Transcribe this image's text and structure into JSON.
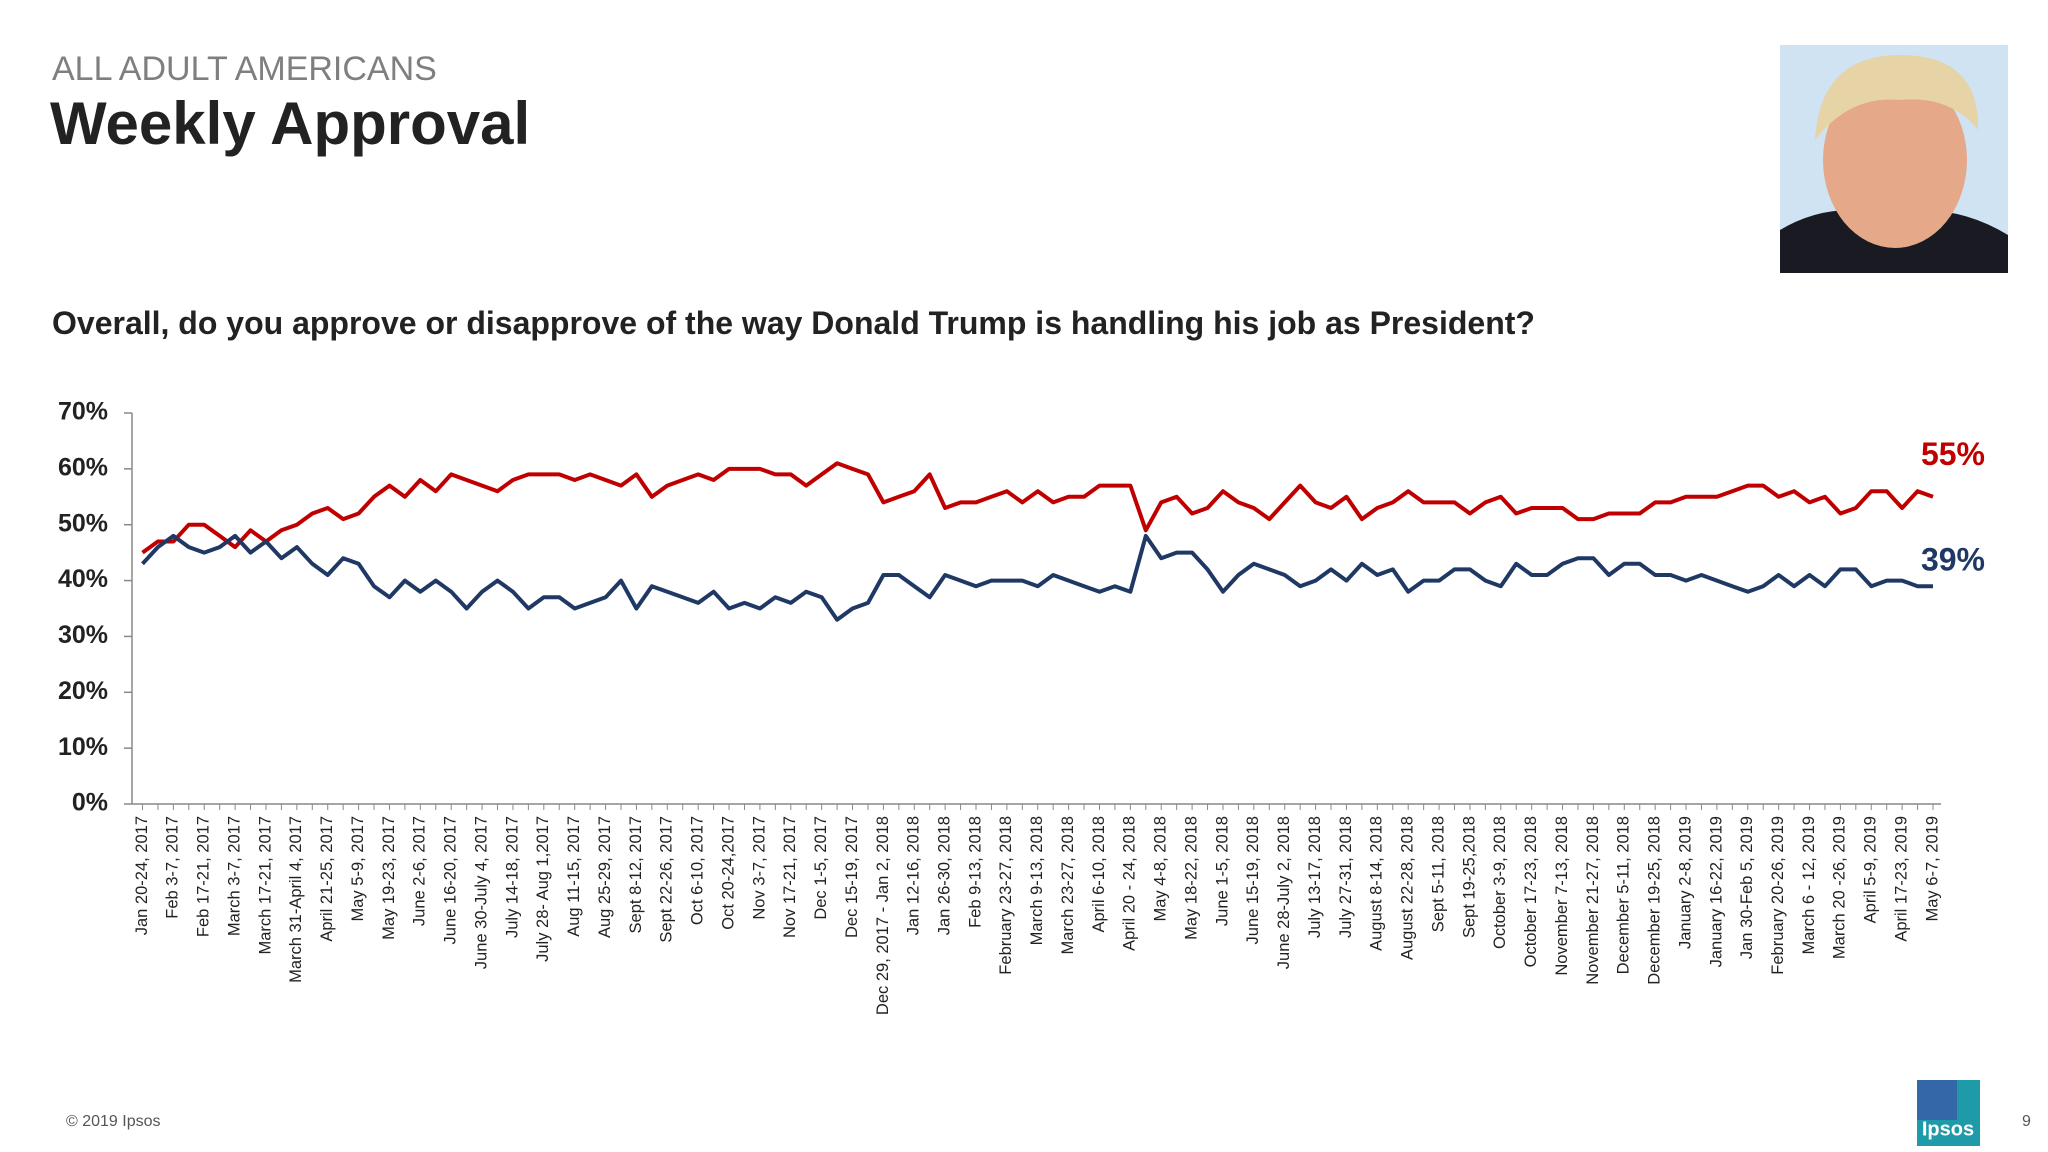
{
  "header": {
    "kicker": "ALL ADULT AMERICANS",
    "title": "Weekly Approval"
  },
  "footer": {
    "copyright": "© 2019 Ipsos",
    "logo": "Ipsos",
    "page": "9"
  },
  "chart_data": {
    "type": "line",
    "subtitle": "Overall, do you approve or disapprove of the way Donald Trump is handling his job as President?",
    "categories": [
      "Jan 20-24, 2017",
      null,
      "Feb 3-7, 2017",
      null,
      "Feb 17-21, 2017",
      null,
      "March 3-7, 2017",
      null,
      "March 17-21, 2017",
      null,
      "March 31-April 4, 2017",
      null,
      "April 21-25, 2017",
      null,
      "May 5-9, 2017",
      null,
      "May 19-23, 2017",
      null,
      "June 2-6, 2017",
      null,
      "June 16-20, 2017",
      null,
      "June 30-July 4, 2017",
      null,
      "July 14-18, 2017",
      null,
      "July 28- Aug 1,2017",
      null,
      "Aug 11-15, 2017",
      null,
      "Aug 25-29, 2017",
      null,
      "Sept 8-12, 2017",
      null,
      "Sept 22-26, 2017",
      null,
      "Oct 6-10, 2017",
      null,
      "Oct 20-24,2017",
      null,
      "Nov 3-7, 2017",
      null,
      "Nov 17-21, 2017",
      null,
      "Dec 1-5, 2017",
      null,
      "Dec 15-19, 2017",
      null,
      "Dec 29, 2017 - Jan 2, 2018",
      null,
      "Jan 12-16, 2018",
      null,
      "Jan 26-30, 2018",
      null,
      "Feb 9-13, 2018",
      null,
      "February 23-27, 2018",
      null,
      "March 9-13, 2018",
      null,
      "March 23-27, 2018",
      null,
      "April 6-10, 2018",
      null,
      "April 20 - 24, 2018",
      null,
      "May 4-8, 2018",
      null,
      "May 18-22, 2018",
      null,
      "June 1-5, 2018",
      null,
      "June 15-19, 2018",
      null,
      "June 28-July 2, 2018",
      null,
      "July 13-17, 2018",
      null,
      "July 27-31, 2018",
      null,
      "August 8-14, 2018",
      null,
      "August 22-28, 2018",
      null,
      "Sept 5-11, 2018",
      null,
      "Sept 19-25,2018",
      null,
      "October 3-9, 2018",
      null,
      "October 17-23, 2018",
      null,
      "November 7-13, 2018",
      null,
      "November 21-27, 2018",
      null,
      "December 5-11, 2018",
      null,
      "December 19-25, 2018",
      null,
      "January 2-8, 2019",
      null,
      "January 16-22, 2019",
      null,
      "Jan 30-Feb 5, 2019",
      null,
      "February 20-26, 2019",
      null,
      "March 6 - 12, 2019",
      null,
      "March 20 -26, 2019",
      null,
      "April 5-9, 2019",
      null,
      "April 17-23, 2019",
      null,
      "May 6-7, 2019"
    ],
    "series": [
      {
        "color": "#c00000",
        "values": [
          45,
          47,
          47,
          50,
          50,
          48,
          46,
          49,
          47,
          49,
          50,
          52,
          53,
          51,
          52,
          55,
          57,
          55,
          58,
          56,
          59,
          58,
          57,
          56,
          58,
          59,
          59,
          59,
          58,
          59,
          58,
          57,
          59,
          55,
          57,
          58,
          59,
          58,
          60,
          60,
          60,
          59,
          59,
          57,
          59,
          61,
          60,
          59,
          54,
          55,
          56,
          59,
          53,
          54,
          54,
          55,
          56,
          54,
          56,
          54,
          55,
          55,
          57,
          57,
          57,
          49,
          54,
          55,
          52,
          53,
          56,
          54,
          53,
          51,
          54,
          57,
          54,
          53,
          55,
          51,
          53,
          54,
          56,
          54,
          54,
          54,
          52,
          54,
          55,
          52,
          53,
          53,
          53,
          51,
          51,
          52,
          52,
          52,
          54,
          54,
          55,
          55,
          55,
          56,
          57,
          57,
          55,
          56,
          54,
          55,
          52,
          53,
          56,
          56,
          53,
          56,
          55
        ],
        "value_labels": [
          null,
          null,
          null,
          null,
          null,
          null,
          null,
          null,
          null,
          null,
          null,
          null,
          null,
          null,
          null,
          null,
          null,
          null,
          null,
          null,
          null,
          null,
          null,
          null,
          null,
          null,
          null,
          null,
          null,
          null,
          null,
          null,
          null,
          null,
          null,
          null,
          null,
          null,
          null,
          null,
          null,
          null,
          null,
          null,
          null,
          null,
          null,
          null,
          null,
          null,
          null,
          null,
          null,
          null,
          null,
          null,
          null,
          null,
          null,
          null,
          null,
          null,
          null,
          null,
          null,
          null,
          null,
          null,
          null,
          null,
          null,
          null,
          null,
          null,
          null,
          null,
          null,
          null,
          null,
          null,
          null,
          null,
          null,
          null,
          null,
          null,
          null,
          null,
          null,
          null,
          null,
          null,
          null,
          null,
          null,
          null,
          null,
          null,
          null,
          null,
          null,
          null,
          null,
          null,
          null,
          null,
          null,
          null,
          null,
          null,
          null,
          null,
          null,
          null,
          null,
          null,
          "55%"
        ]
      },
      {
        "color": "#1f3864",
        "values": [
          43,
          46,
          48,
          46,
          45,
          46,
          48,
          45,
          47,
          44,
          46,
          43,
          41,
          44,
          43,
          39,
          37,
          40,
          38,
          40,
          38,
          35,
          38,
          40,
          38,
          35,
          37,
          37,
          35,
          36,
          37,
          40,
          35,
          39,
          38,
          37,
          36,
          38,
          35,
          36,
          35,
          37,
          36,
          38,
          37,
          33,
          35,
          36,
          41,
          41,
          39,
          37,
          41,
          40,
          39,
          40,
          40,
          40,
          39,
          41,
          40,
          39,
          38,
          39,
          38,
          48,
          44,
          45,
          45,
          42,
          38,
          41,
          43,
          42,
          41,
          39,
          40,
          42,
          40,
          43,
          41,
          42,
          38,
          40,
          40,
          42,
          42,
          40,
          39,
          43,
          41,
          41,
          43,
          44,
          44,
          41,
          43,
          43,
          41,
          41,
          40,
          41,
          40,
          39,
          38,
          39,
          41,
          39,
          41,
          39,
          42,
          42,
          39,
          40,
          40,
          39,
          39
        ],
        "value_labels": [
          null,
          null,
          null,
          null,
          null,
          null,
          null,
          null,
          null,
          null,
          null,
          null,
          null,
          null,
          null,
          null,
          null,
          null,
          null,
          null,
          null,
          null,
          null,
          null,
          null,
          null,
          null,
          null,
          null,
          null,
          null,
          null,
          null,
          null,
          null,
          null,
          null,
          null,
          null,
          null,
          null,
          null,
          null,
          null,
          null,
          null,
          null,
          null,
          null,
          null,
          null,
          null,
          null,
          null,
          null,
          null,
          null,
          null,
          null,
          null,
          null,
          null,
          null,
          null,
          null,
          null,
          null,
          null,
          null,
          null,
          null,
          null,
          null,
          null,
          null,
          null,
          null,
          null,
          null,
          null,
          null,
          null,
          null,
          null,
          null,
          null,
          null,
          null,
          null,
          null,
          null,
          null,
          null,
          null,
          null,
          null,
          null,
          null,
          null,
          null,
          null,
          null,
          null,
          null,
          null,
          null,
          null,
          null,
          null,
          null,
          null,
          null,
          null,
          null,
          null,
          null,
          "39%"
        ]
      }
    ],
    "ylim": [
      0,
      70
    ],
    "yticks": [
      {
        "value": 0,
        "label": "0%"
      },
      {
        "value": 10,
        "label": "10%"
      },
      {
        "value": 20,
        "label": "20%"
      },
      {
        "value": 30,
        "label": "30%"
      },
      {
        "value": 40,
        "label": "40%"
      },
      {
        "value": 50,
        "label": "50%"
      },
      {
        "value": 60,
        "label": "60%"
      },
      {
        "value": 70,
        "label": "70%"
      }
    ],
    "grid": false
  }
}
